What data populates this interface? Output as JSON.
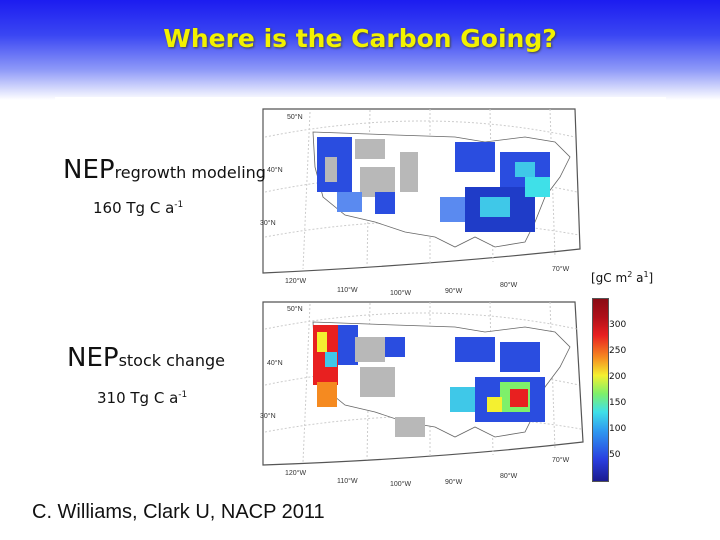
{
  "slide": {
    "title": "Where is the Carbon Going?",
    "citation": "C. Williams, Clark U, NACP 2011"
  },
  "panels": [
    {
      "name": "NEP",
      "subscript": "regrowth modeling",
      "total_value": "160 Tg C a",
      "total_exp": "-1"
    },
    {
      "name": "NEP",
      "subscript": "stock change",
      "total_value": "310 Tg C a",
      "total_exp": "-1"
    }
  ],
  "colorbar": {
    "units_base": "[gC m",
    "units_exp1": "2",
    "units_mid": " a",
    "units_exp2": "1",
    "units_end": "]",
    "ticks": [
      "300",
      "250",
      "200",
      "150",
      "100",
      "50"
    ]
  },
  "map_labels": {
    "top": {
      "lat": [
        "50°N",
        "40°N",
        "30°N"
      ],
      "lon": [
        "120°W",
        "110°W",
        "100°W",
        "90°W",
        "80°W",
        "70°W"
      ]
    },
    "bottom": {
      "lat": [
        "50°N",
        "40°N",
        "30°N"
      ],
      "lon": [
        "120°W",
        "110°W",
        "100°W",
        "90°W",
        "80°W",
        "70°W"
      ]
    }
  },
  "colors": {
    "title": "#f2f200",
    "header_top": "#1c1cf0",
    "no_data": "#b8b8b8"
  }
}
